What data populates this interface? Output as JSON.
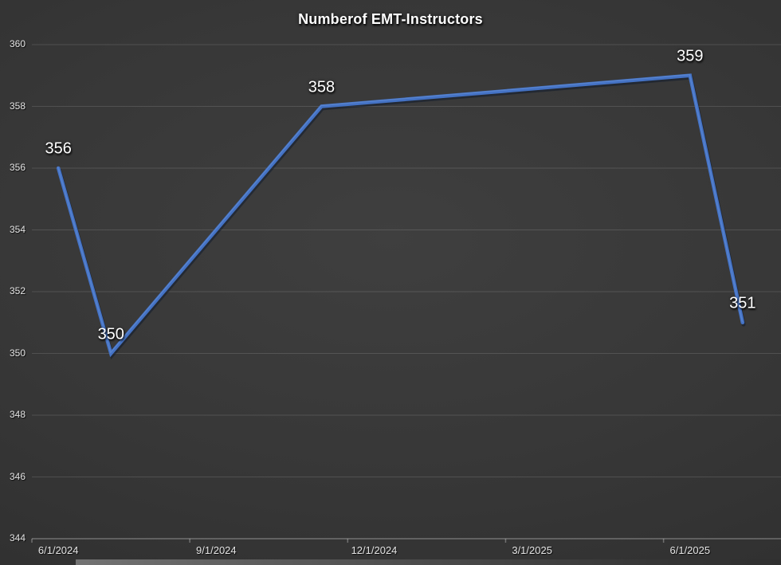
{
  "chart_data": {
    "type": "line",
    "title": "Numberof EMT-Instructors",
    "values": [
      356,
      350,
      358,
      359,
      351
    ],
    "data_labels": [
      "356",
      "350",
      "358",
      "359",
      "351"
    ],
    "x_month_offsets": [
      0,
      1,
      5,
      12,
      13
    ],
    "x_tick_labels": [
      "6/1/2024",
      "9/1/2024",
      "12/1/2024",
      "3/1/2025",
      "6/1/2025"
    ],
    "y_tick_labels": [
      "360",
      "358",
      "356",
      "354",
      "352",
      "350",
      "348",
      "346",
      "344"
    ],
    "ylim": [
      344,
      360
    ],
    "y_step": 2,
    "grid": true,
    "legend": "none",
    "line_color": "#4472C4",
    "line_shadow_color": "#101b2e",
    "line_highlight_color": "#6f9ade",
    "grid_color": "rgba(255,255,255,0.13)",
    "axis_color": "rgba(255,255,255,0.30)",
    "label_color": "#ffffff",
    "axis_label_color": "#e4e4e4"
  }
}
